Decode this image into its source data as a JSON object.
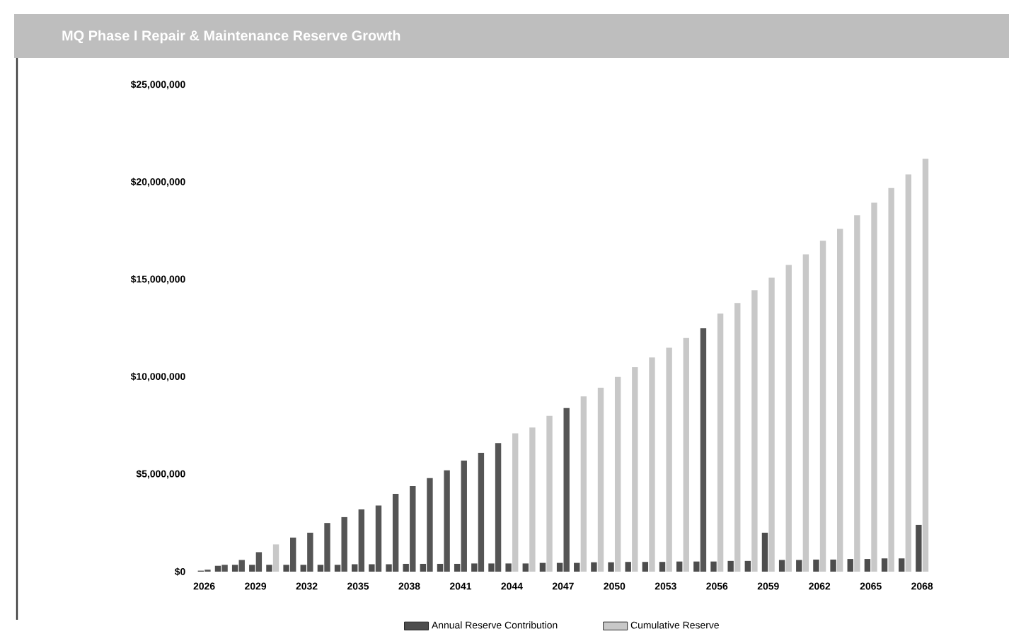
{
  "chart_data": {
    "type": "bar",
    "title": "MQ Phase I Repair & Maintenance Reserve Growth",
    "categories": [
      "2026",
      null,
      null,
      "2029",
      null,
      null,
      "2032",
      null,
      null,
      "2035",
      null,
      null,
      "2038",
      null,
      null,
      "2041",
      null,
      null,
      "2044",
      null,
      null,
      "2047",
      null,
      null,
      "2050",
      null,
      null,
      "2053",
      null,
      null,
      "2056",
      null,
      null,
      "2059",
      null,
      null,
      "2062",
      null,
      null,
      "2065",
      null,
      null,
      "2068"
    ],
    "series": [
      {
        "name": "Annual Reserve Contribution",
        "color": "#4d4d4d",
        "values": [
          50000,
          300000,
          350000,
          350000,
          350000,
          350000,
          350000,
          350000,
          350000,
          380000,
          380000,
          380000,
          400000,
          400000,
          400000,
          400000,
          420000,
          420000,
          420000,
          420000,
          450000,
          450000,
          450000,
          480000,
          480000,
          500000,
          500000,
          500000,
          520000,
          520000,
          520000,
          550000,
          550000,
          2000000,
          600000,
          600000,
          620000,
          620000,
          650000,
          650000,
          680000,
          680000,
          2400000
        ]
      },
      {
        "name": "Cumulative Reserve",
        "color": "#c8c8c8",
        "colors": [
          "#555555",
          "#555555",
          "#555555",
          "#555555",
          "#c8c8c8",
          "#555555",
          "#555555",
          "#555555",
          "#555555",
          "#555555",
          "#555555",
          "#555555",
          "#555555",
          "#555555",
          "#555555",
          "#555555",
          "#555555",
          "#555555",
          "#c8c8c8",
          "#c8c8c8",
          "#c8c8c8",
          "#555555",
          "#c8c8c8",
          "#c8c8c8",
          "#c8c8c8",
          "#c8c8c8",
          "#c8c8c8",
          "#c8c8c8",
          "#c8c8c8",
          "#555555",
          "#c8c8c8",
          "#c8c8c8",
          "#c8c8c8",
          "#c8c8c8",
          "#c8c8c8",
          "#c8c8c8",
          "#c8c8c8",
          "#c8c8c8",
          "#c8c8c8",
          "#c8c8c8",
          "#c8c8c8",
          "#c8c8c8",
          "#c8c8c8"
        ],
        "values": [
          100000,
          350000,
          600000,
          1000000,
          1400000,
          1750000,
          2000000,
          2500000,
          2800000,
          3200000,
          3400000,
          4000000,
          4400000,
          4800000,
          5200000,
          5700000,
          6100000,
          6600000,
          7100000,
          7400000,
          8000000,
          8400000,
          9000000,
          9450000,
          10000000,
          10500000,
          11000000,
          11500000,
          12000000,
          12500000,
          13250000,
          13800000,
          14450000,
          15100000,
          15750000,
          16300000,
          17000000,
          17600000,
          18300000,
          18950000,
          19700000,
          20400000,
          21200000
        ]
      }
    ],
    "ylim": [
      0,
      25000000
    ],
    "yticks": [
      {
        "value": 0,
        "label": "$0"
      },
      {
        "value": 5000000,
        "label": "$5,000,000"
      },
      {
        "value": 10000000,
        "label": "$10,000,000"
      },
      {
        "value": 15000000,
        "label": "$15,000,000"
      },
      {
        "value": 20000000,
        "label": "$20,000,000"
      },
      {
        "value": 25000000,
        "label": "$25,000,000"
      }
    ],
    "legend": "bottom"
  }
}
